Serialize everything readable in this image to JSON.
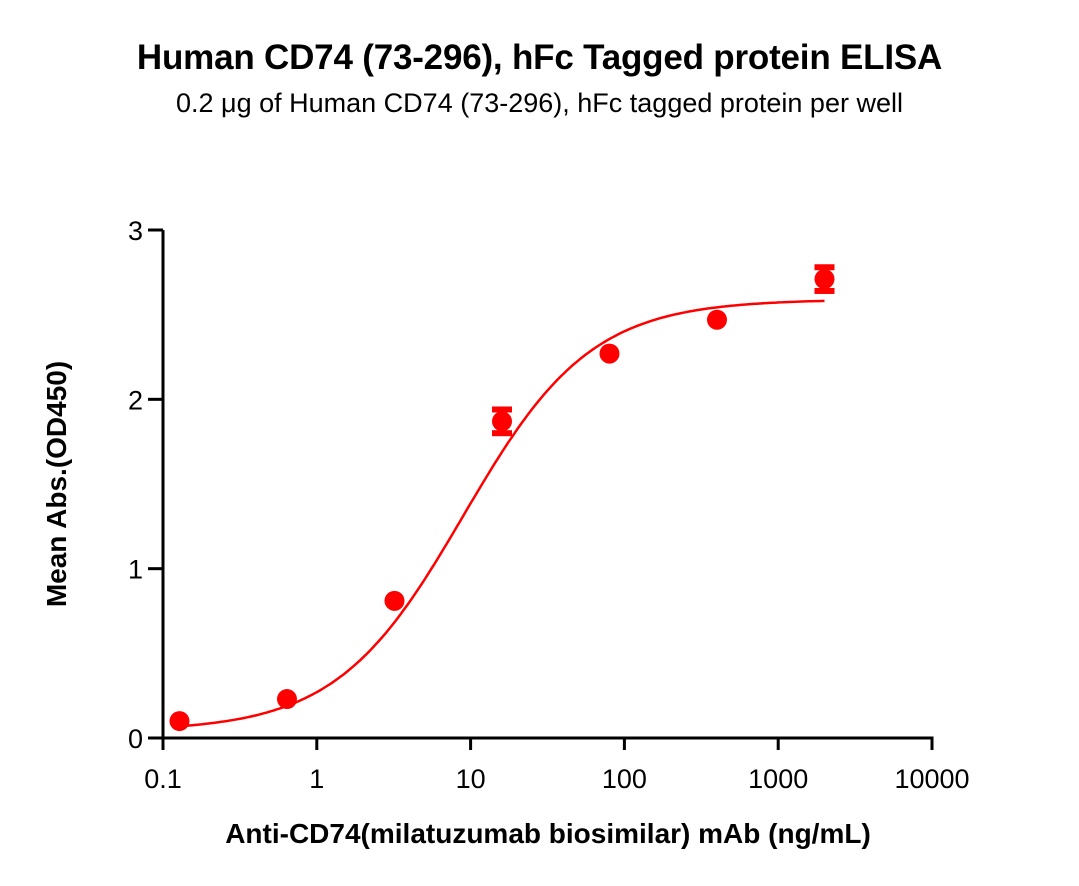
{
  "header": {
    "title": "Human CD74 (73-296), hFc Tagged protein ELISA",
    "subtitle": "0.2 μg of Human CD74 (73-296), hFc tagged protein per well"
  },
  "axes": {
    "xlabel": "Anti-CD74(milatuzumab biosimilar) mAb  (ng/mL)",
    "ylabel": "Mean Abs.(OD450)",
    "x_ticks": [
      "0.1",
      "1",
      "10",
      "100",
      "1000",
      "10000"
    ],
    "y_ticks": [
      "0",
      "1",
      "2",
      "3"
    ]
  },
  "colors": {
    "series": "#ff0000",
    "axis": "#000000"
  },
  "chart_data": {
    "type": "scatter",
    "title": "Human CD74 (73-296), hFc Tagged protein ELISA",
    "subtitle": "0.2 μg of Human CD74 (73-296), hFc tagged protein per well",
    "xlabel": "Anti-CD74(milatuzumab biosimilar) mAb  (ng/mL)",
    "ylabel": "Mean Abs.(OD450)",
    "xscale": "log",
    "xlim": [
      0.1,
      10000
    ],
    "ylim": [
      0,
      3
    ],
    "x_ticks": [
      0.1,
      1,
      10,
      100,
      1000,
      10000
    ],
    "y_ticks": [
      0,
      1,
      2,
      3
    ],
    "grid": false,
    "legend": null,
    "series": [
      {
        "name": "Mean Abs.(OD450)",
        "marker": "circle",
        "color": "#ff0000",
        "x": [
          0.128,
          0.64,
          3.2,
          16,
          80,
          400,
          2000
        ],
        "y": [
          0.1,
          0.23,
          0.81,
          1.87,
          2.27,
          2.47,
          2.71
        ],
        "error": [
          0.01,
          0.01,
          0.02,
          0.07,
          0.02,
          0.02,
          0.07
        ]
      }
    ],
    "fit": {
      "type": "4PL sigmoid",
      "color": "#ff0000",
      "bottom": 0.04,
      "top": 2.59,
      "ec50": 9.0,
      "hill": 1.05
    }
  }
}
